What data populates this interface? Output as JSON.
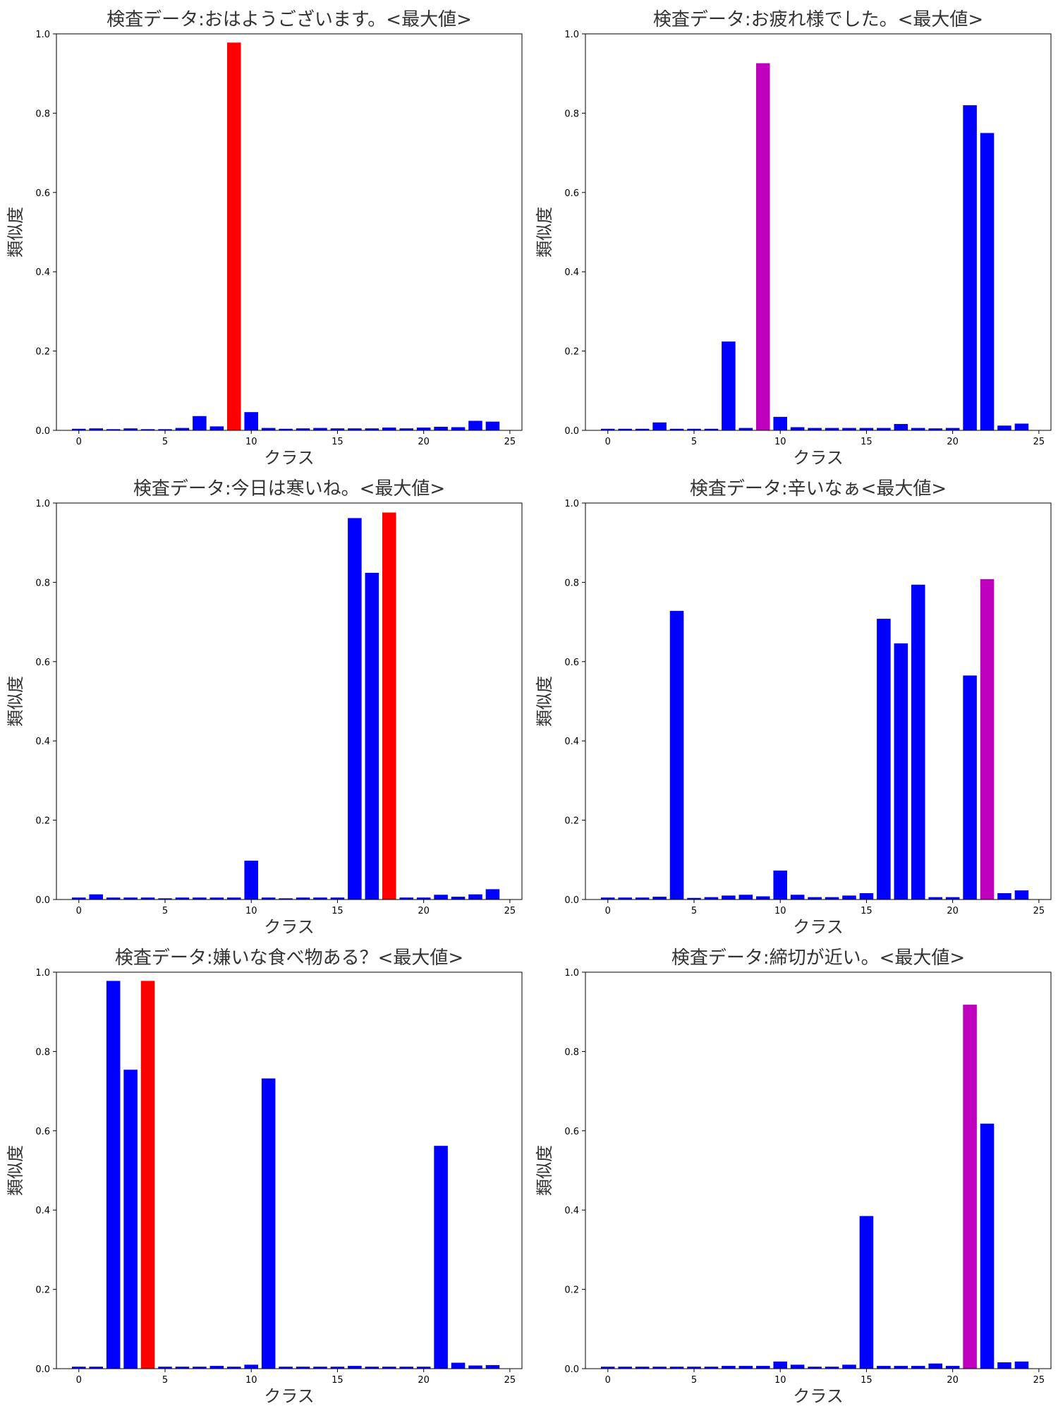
{
  "figure": {
    "grid": false,
    "colors": {
      "default_bar": "#0000ff",
      "max_bar": "#ff0000",
      "secondary_max_bar": "#bf00bf"
    }
  },
  "chart_data": [
    {
      "type": "bar",
      "title": "検査データ:おはようございます。<最大値>",
      "xlabel": "クラス",
      "ylabel": "類似度",
      "xticks": [
        0,
        5,
        10,
        15,
        20,
        25
      ],
      "yticks": [
        "0.0",
        "0.2",
        "0.4",
        "0.6",
        "0.8",
        "1.0"
      ],
      "xlim": [
        -1.3,
        25.7
      ],
      "ylim": [
        0,
        1.0
      ],
      "x": [
        0,
        1,
        2,
        3,
        4,
        5,
        6,
        7,
        8,
        9,
        10,
        11,
        12,
        13,
        14,
        15,
        16,
        17,
        18,
        19,
        20,
        21,
        22,
        23,
        24
      ],
      "values": [
        0.004,
        0.005,
        0.003,
        0.005,
        0.003,
        0.003,
        0.006,
        0.036,
        0.01,
        0.978,
        0.046,
        0.006,
        0.004,
        0.005,
        0.006,
        0.005,
        0.005,
        0.005,
        0.007,
        0.005,
        0.007,
        0.009,
        0.008,
        0.024,
        0.022
      ],
      "highlight": {
        "index": 9,
        "color": "#ff0000"
      }
    },
    {
      "type": "bar",
      "title": "検査データ:お疲れ様でした。<最大値>",
      "xlabel": "クラス",
      "ylabel": "類似度",
      "xticks": [
        0,
        5,
        10,
        15,
        20,
        25
      ],
      "yticks": [
        "0.0",
        "0.2",
        "0.4",
        "0.6",
        "0.8",
        "1.0"
      ],
      "xlim": [
        -1.3,
        25.7
      ],
      "ylim": [
        0,
        1.0
      ],
      "x": [
        0,
        1,
        2,
        3,
        4,
        5,
        6,
        7,
        8,
        9,
        10,
        11,
        12,
        13,
        14,
        15,
        16,
        17,
        18,
        19,
        20,
        21,
        22,
        23,
        24
      ],
      "values": [
        0.004,
        0.004,
        0.004,
        0.02,
        0.004,
        0.004,
        0.004,
        0.224,
        0.006,
        0.926,
        0.034,
        0.008,
        0.006,
        0.006,
        0.006,
        0.006,
        0.006,
        0.016,
        0.006,
        0.005,
        0.006,
        0.82,
        0.75,
        0.012,
        0.017
      ],
      "highlight": {
        "index": 9,
        "color": "#bf00bf"
      }
    },
    {
      "type": "bar",
      "title": "検査データ:今日は寒いね。<最大値>",
      "xlabel": "クラス",
      "ylabel": "類似度",
      "xticks": [
        0,
        5,
        10,
        15,
        20,
        25
      ],
      "yticks": [
        "0.0",
        "0.2",
        "0.4",
        "0.6",
        "0.8",
        "1.0"
      ],
      "xlim": [
        -1.3,
        25.7
      ],
      "ylim": [
        0,
        1.0
      ],
      "x": [
        0,
        1,
        2,
        3,
        4,
        5,
        6,
        7,
        8,
        9,
        10,
        11,
        12,
        13,
        14,
        15,
        16,
        17,
        18,
        19,
        20,
        21,
        22,
        23,
        24
      ],
      "values": [
        0.005,
        0.013,
        0.005,
        0.005,
        0.005,
        0.003,
        0.005,
        0.005,
        0.005,
        0.005,
        0.098,
        0.005,
        0.003,
        0.005,
        0.005,
        0.005,
        0.962,
        0.824,
        0.976,
        0.005,
        0.005,
        0.012,
        0.007,
        0.013,
        0.026
      ],
      "highlight": {
        "index": 18,
        "color": "#ff0000"
      }
    },
    {
      "type": "bar",
      "title": "検査データ:辛いなぁ<最大値>",
      "xlabel": "クラス",
      "ylabel": "類似度",
      "xticks": [
        0,
        5,
        10,
        15,
        20,
        25
      ],
      "yticks": [
        "0.0",
        "0.2",
        "0.4",
        "0.6",
        "0.8",
        "1.0"
      ],
      "xlim": [
        -1.3,
        25.7
      ],
      "ylim": [
        0,
        1.0
      ],
      "x": [
        0,
        1,
        2,
        3,
        4,
        5,
        6,
        7,
        8,
        9,
        10,
        11,
        12,
        13,
        14,
        15,
        16,
        17,
        18,
        19,
        20,
        21,
        22,
        23,
        24
      ],
      "values": [
        0.005,
        0.005,
        0.005,
        0.007,
        0.728,
        0.004,
        0.006,
        0.01,
        0.012,
        0.008,
        0.073,
        0.012,
        0.006,
        0.006,
        0.01,
        0.016,
        0.708,
        0.646,
        0.794,
        0.006,
        0.006,
        0.565,
        0.808,
        0.016,
        0.023
      ],
      "highlight": {
        "index": 22,
        "color": "#bf00bf"
      }
    },
    {
      "type": "bar",
      "title": "検査データ:嫌いな食べ物ある？<最大値>",
      "xlabel": "クラス",
      "ylabel": "類似度",
      "xticks": [
        0,
        5,
        10,
        15,
        20,
        25
      ],
      "yticks": [
        "0.0",
        "0.2",
        "0.4",
        "0.6",
        "0.8",
        "1.0"
      ],
      "xlim": [
        -1.3,
        25.7
      ],
      "ylim": [
        0,
        1.0
      ],
      "x": [
        0,
        1,
        2,
        3,
        4,
        5,
        6,
        7,
        8,
        9,
        10,
        11,
        12,
        13,
        14,
        15,
        16,
        17,
        18,
        19,
        20,
        21,
        22,
        23,
        24
      ],
      "values": [
        0.005,
        0.005,
        0.978,
        0.754,
        0.978,
        0.005,
        0.005,
        0.005,
        0.007,
        0.005,
        0.01,
        0.732,
        0.005,
        0.005,
        0.005,
        0.005,
        0.007,
        0.005,
        0.005,
        0.005,
        0.005,
        0.562,
        0.015,
        0.008,
        0.009
      ],
      "highlight": {
        "index": 4,
        "color": "#ff0000"
      }
    },
    {
      "type": "bar",
      "title": "検査データ:締切が近い。<最大値>",
      "xlabel": "クラス",
      "ylabel": "類似度",
      "xticks": [
        0,
        5,
        10,
        15,
        20,
        25
      ],
      "yticks": [
        "0.0",
        "0.2",
        "0.4",
        "0.6",
        "0.8",
        "1.0"
      ],
      "xlim": [
        -1.3,
        25.7
      ],
      "ylim": [
        0,
        1.0
      ],
      "x": [
        0,
        1,
        2,
        3,
        4,
        5,
        6,
        7,
        8,
        9,
        10,
        11,
        12,
        13,
        14,
        15,
        16,
        17,
        18,
        19,
        20,
        21,
        22,
        23,
        24
      ],
      "values": [
        0.005,
        0.005,
        0.005,
        0.005,
        0.005,
        0.005,
        0.005,
        0.007,
        0.007,
        0.007,
        0.018,
        0.01,
        0.005,
        0.005,
        0.01,
        0.385,
        0.007,
        0.007,
        0.007,
        0.013,
        0.007,
        0.918,
        0.618,
        0.016,
        0.018
      ],
      "highlight": {
        "index": 21,
        "color": "#bf00bf"
      }
    }
  ]
}
